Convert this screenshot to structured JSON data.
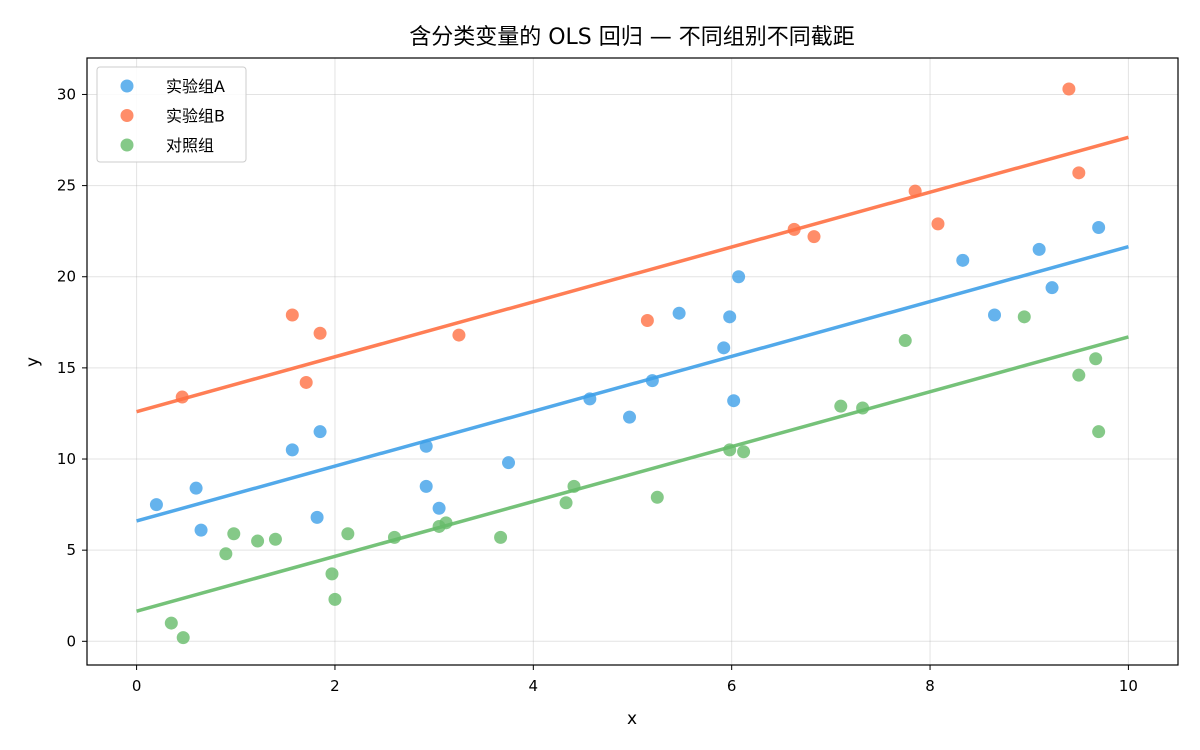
{
  "chart_data": {
    "type": "scatter",
    "title": "含分类变量的 OLS 回归 — 不同组别不同截距",
    "xlabel": "x",
    "ylabel": "y",
    "xlim": [
      -0.5,
      10.5
    ],
    "ylim": [
      -1.3,
      32.0
    ],
    "xticks": [
      0,
      2,
      4,
      6,
      8,
      10
    ],
    "yticks": [
      0,
      5,
      10,
      15,
      20,
      25,
      30
    ],
    "grid": true,
    "legend_position": "top-left",
    "series": [
      {
        "name": "实验组A",
        "color": "#3fa0e8",
        "points": [
          [
            0.2,
            7.5
          ],
          [
            0.6,
            8.4
          ],
          [
            0.65,
            6.1
          ],
          [
            1.57,
            10.5
          ],
          [
            1.82,
            6.8
          ],
          [
            1.85,
            11.5
          ],
          [
            2.92,
            10.7
          ],
          [
            2.92,
            8.5
          ],
          [
            3.05,
            7.3
          ],
          [
            3.75,
            9.8
          ],
          [
            4.57,
            13.3
          ],
          [
            4.97,
            12.3
          ],
          [
            5.2,
            14.3
          ],
          [
            5.47,
            18.0
          ],
          [
            5.92,
            16.1
          ],
          [
            5.98,
            17.8
          ],
          [
            6.02,
            13.2
          ],
          [
            6.07,
            20.0
          ],
          [
            8.33,
            20.9
          ],
          [
            8.65,
            17.9
          ],
          [
            9.1,
            21.5
          ],
          [
            9.23,
            19.4
          ],
          [
            9.7,
            22.7
          ]
        ],
        "fit": {
          "intercept": 6.6,
          "slope": 1.505
        }
      },
      {
        "name": "实验组B",
        "color": "#ff7043",
        "points": [
          [
            0.46,
            13.4
          ],
          [
            1.57,
            17.9
          ],
          [
            1.71,
            14.2
          ],
          [
            1.85,
            16.9
          ],
          [
            3.25,
            16.8
          ],
          [
            5.15,
            17.6
          ],
          [
            6.63,
            22.6
          ],
          [
            6.83,
            22.2
          ],
          [
            7.85,
            24.7
          ],
          [
            8.08,
            22.9
          ],
          [
            9.4,
            30.3
          ],
          [
            9.5,
            25.7
          ]
        ],
        "fit": {
          "intercept": 12.6,
          "slope": 1.505
        }
      },
      {
        "name": "对照组",
        "color": "#66bb6a",
        "points": [
          [
            0.35,
            1.0
          ],
          [
            0.47,
            0.2
          ],
          [
            0.9,
            4.8
          ],
          [
            0.98,
            5.9
          ],
          [
            1.22,
            5.5
          ],
          [
            1.4,
            5.6
          ],
          [
            1.97,
            3.7
          ],
          [
            2.0,
            2.3
          ],
          [
            2.13,
            5.9
          ],
          [
            2.6,
            5.7
          ],
          [
            3.05,
            6.3
          ],
          [
            3.12,
            6.5
          ],
          [
            3.67,
            5.7
          ],
          [
            4.33,
            7.6
          ],
          [
            4.41,
            8.5
          ],
          [
            5.25,
            7.9
          ],
          [
            5.98,
            10.5
          ],
          [
            6.12,
            10.4
          ],
          [
            7.1,
            12.9
          ],
          [
            7.32,
            12.8
          ],
          [
            7.75,
            16.5
          ],
          [
            8.95,
            17.8
          ],
          [
            9.5,
            14.6
          ],
          [
            9.67,
            15.5
          ],
          [
            9.7,
            11.5
          ]
        ],
        "fit": {
          "intercept": 1.65,
          "slope": 1.505
        }
      }
    ]
  }
}
